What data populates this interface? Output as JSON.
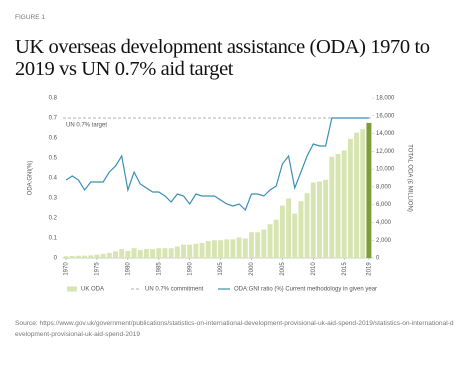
{
  "figure_label": "FIGURE 1",
  "source": "Source: https://www.gov.uk/government/publications/statistics-on-international-development-provisional-uk-aid-spend-2019/statistics-on-international-development-provisional-uk-aid-spend-2019",
  "chart_data": {
    "type": "bar",
    "title": "UK overseas development assistance (ODA) 1970 to 2019 vs UN 0.7% aid target",
    "y_label": "ODA:GNI(%)",
    "y2_label": "TOTAL ODA (£ MILLION)",
    "x": [
      1970,
      1971,
      1972,
      1973,
      1974,
      1975,
      1976,
      1977,
      1978,
      1979,
      1980,
      1981,
      1982,
      1983,
      1984,
      1985,
      1986,
      1987,
      1988,
      1989,
      1990,
      1991,
      1992,
      1993,
      1994,
      1995,
      1996,
      1997,
      1998,
      1999,
      2000,
      2001,
      2002,
      2003,
      2004,
      2005,
      2006,
      2007,
      2008,
      2009,
      2010,
      2011,
      2012,
      2013,
      2014,
      2015,
      2016,
      2017,
      2018,
      2019
    ],
    "xlim": [
      1969.5,
      2019.5
    ],
    "xticks": [
      1970,
      1975,
      1980,
      1985,
      1990,
      1995,
      2000,
      2005,
      2010,
      2015,
      2019
    ],
    "ylim": [
      0,
      0.8
    ],
    "yticks": [
      0,
      0.1,
      0.2,
      0.3,
      0.4,
      0.5,
      0.6,
      0.7,
      0.8
    ],
    "y2lim": [
      0,
      18000
    ],
    "y2ticks": [
      0,
      {
        "value": 2000,
        "label": "2,000"
      },
      {
        "value": 4000,
        "label": "4,000"
      },
      {
        "value": 6000,
        "label": "6,000"
      },
      {
        "value": 8000,
        "label": "8,000"
      },
      {
        "value": 10000,
        "label": "10,000"
      },
      {
        "value": 12000,
        "label": "12,000"
      },
      {
        "value": 14000,
        "label": "14,000"
      },
      {
        "value": 16000,
        "label": "16,000"
      },
      {
        "value": 18000,
        "label": "18,000"
      }
    ],
    "series": [
      {
        "name": "UK ODA",
        "type": "bar",
        "axis": "y2",
        "color": "#d8e5b3",
        "last_color": "#7d9c3b",
        "values": [
          200,
          230,
          250,
          260,
          300,
          380,
          460,
          560,
          740,
          1000,
          800,
          1100,
          900,
          1000,
          1000,
          1100,
          1100,
          1100,
          1300,
          1500,
          1500,
          1600,
          1700,
          1900,
          2000,
          2000,
          2100,
          2100,
          2300,
          2200,
          2900,
          2900,
          3200,
          3800,
          4300,
          5900,
          6700,
          5000,
          6400,
          7300,
          8500,
          8600,
          8800,
          11400,
          11700,
          12100,
          13400,
          14100,
          14500,
          15200
        ]
      },
      {
        "name": "ODA:GNI ratio (%) Current methodology in given year",
        "type": "line",
        "color": "#3b8fb5",
        "values": [
          0.39,
          0.41,
          0.39,
          0.34,
          0.38,
          0.38,
          0.38,
          0.43,
          0.46,
          0.51,
          0.34,
          0.43,
          0.37,
          0.35,
          0.33,
          0.33,
          0.31,
          0.28,
          0.32,
          0.31,
          0.27,
          0.32,
          0.31,
          0.31,
          0.31,
          0.29,
          0.27,
          0.26,
          0.27,
          0.24,
          0.32,
          0.32,
          0.31,
          0.34,
          0.36,
          0.47,
          0.51,
          0.35,
          0.43,
          0.51,
          0.57,
          0.56,
          0.56,
          0.7,
          0.7,
          0.7,
          0.7,
          0.7,
          0.7,
          0.7
        ]
      }
    ],
    "reference_line": {
      "name": "UN 0.7% commitment",
      "label": "UN 0.7% target",
      "value": 0.7,
      "color": "#999999"
    }
  }
}
